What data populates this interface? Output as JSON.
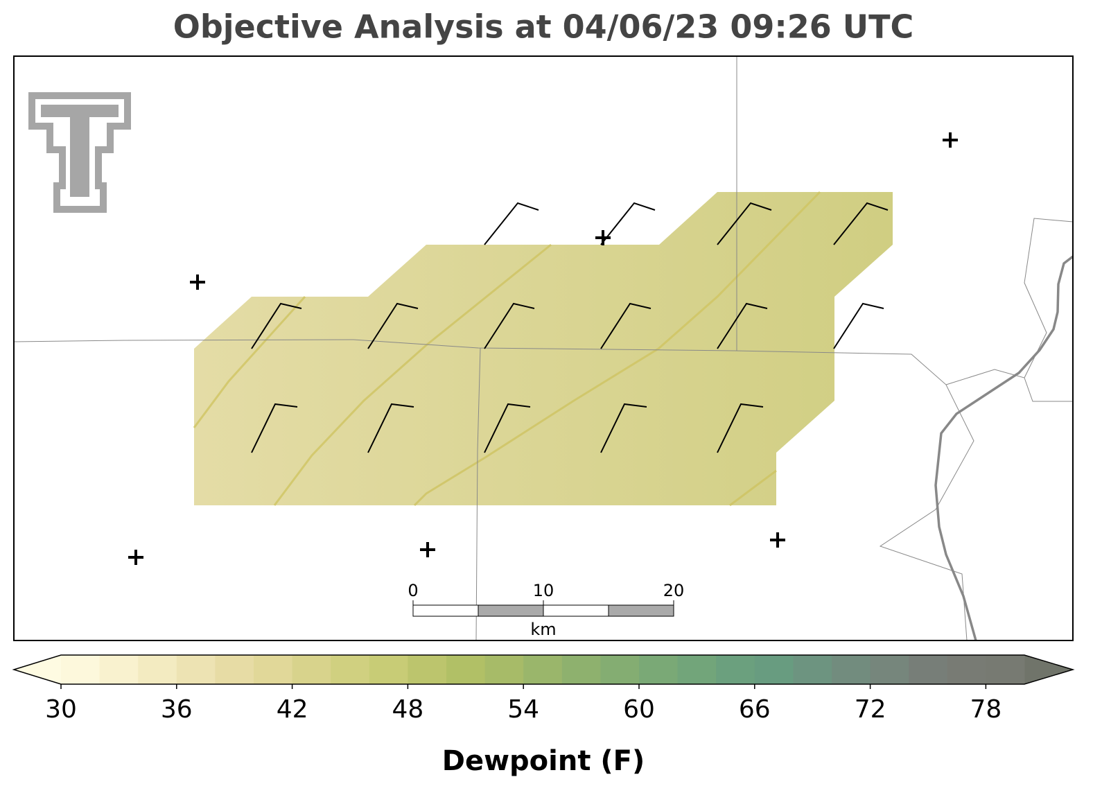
{
  "header": {
    "title": "Objective Analysis at 04/06/23 09:26 UTC"
  },
  "colorbar": {
    "label": "Dewpoint (F)",
    "range": [
      30,
      80
    ],
    "ticks": [
      30,
      36,
      42,
      48,
      54,
      60,
      66,
      72,
      78
    ],
    "colors": [
      "#fdf8dc",
      "#f9f2cf",
      "#f3ebc1",
      "#ede3b3",
      "#e7dca5",
      "#e1d899",
      "#d8d38c",
      "#d0d080",
      "#c8cc76",
      "#bcc56d",
      "#b1c066",
      "#a7bb68",
      "#9ab66b",
      "#8eb16e",
      "#84ad72",
      "#7aa976",
      "#72a57a",
      "#6ba07e",
      "#689c80",
      "#6d9480",
      "#728c7e",
      "#76867c",
      "#777e78",
      "#787b74",
      "#777a72"
    ],
    "under_color": "#fefbe2",
    "over_color": "#70746a"
  },
  "scale_bar": {
    "ticks": [
      0,
      10,
      20
    ],
    "unit": "km"
  }
}
